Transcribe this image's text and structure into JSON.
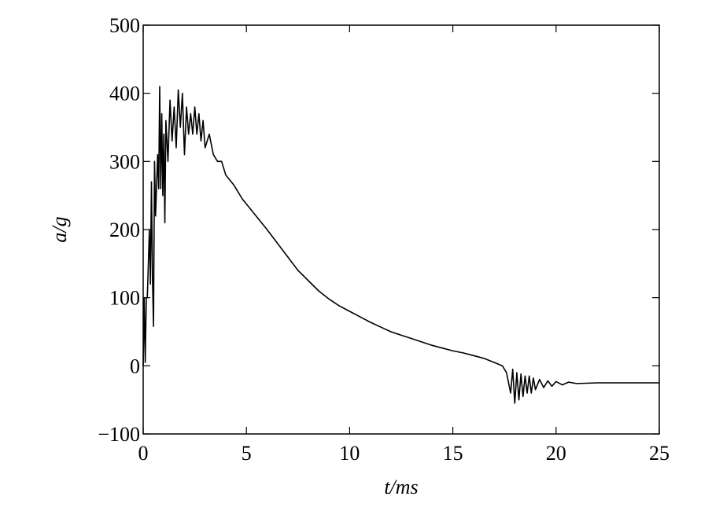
{
  "chart_data": {
    "type": "line",
    "xlabel": "t/ms",
    "ylabel": "a/g",
    "x": [
      0,
      0.05,
      0.1,
      0.15,
      0.2,
      0.3,
      0.35,
      0.4,
      0.45,
      0.5,
      0.55,
      0.6,
      0.7,
      0.75,
      0.8,
      0.85,
      0.9,
      0.95,
      1.0,
      1.05,
      1.1,
      1.2,
      1.3,
      1.4,
      1.5,
      1.6,
      1.7,
      1.8,
      1.9,
      2.0,
      2.1,
      2.2,
      2.3,
      2.4,
      2.5,
      2.6,
      2.7,
      2.8,
      2.9,
      3.0,
      3.2,
      3.4,
      3.6,
      3.8,
      4.0,
      4.4,
      4.8,
      5.2,
      5.6,
      6,
      6.5,
      7,
      7.5,
      8,
      8.5,
      9,
      9.5,
      10,
      10.5,
      11,
      11.5,
      12,
      12.5,
      13,
      13.5,
      14,
      14.5,
      15,
      15.5,
      16,
      16.5,
      17,
      17.4,
      17.6,
      17.8,
      17.9,
      18.0,
      18.1,
      18.2,
      18.3,
      18.4,
      18.5,
      18.6,
      18.7,
      18.8,
      18.9,
      19,
      19.2,
      19.4,
      19.6,
      19.8,
      20,
      20.3,
      20.6,
      21,
      22,
      23,
      25
    ],
    "values": [
      0,
      100,
      5,
      100,
      100,
      200,
      120,
      270,
      130,
      58,
      300,
      220,
      310,
      260,
      410,
      260,
      370,
      250,
      340,
      210,
      360,
      300,
      390,
      330,
      380,
      320,
      405,
      350,
      400,
      310,
      380,
      340,
      370,
      340,
      380,
      340,
      370,
      330,
      360,
      320,
      340,
      310,
      300,
      300,
      280,
      265,
      245,
      230,
      215,
      200,
      180,
      160,
      140,
      125,
      110,
      98,
      88,
      80,
      72,
      64,
      57,
      50,
      45,
      40,
      35,
      30,
      26,
      22,
      19,
      15,
      11,
      5,
      0,
      -10,
      -40,
      -5,
      -55,
      -10,
      -50,
      -12,
      -45,
      -15,
      -40,
      -15,
      -40,
      -18,
      -35,
      -20,
      -32,
      -22,
      -30,
      -23,
      -28,
      -24,
      -26,
      -25,
      -25,
      -25
    ],
    "color": "#000000",
    "xlim": [
      0,
      25
    ],
    "xticks": [
      0,
      5,
      10,
      15,
      20,
      25
    ],
    "ylim": [
      -100,
      500
    ],
    "yticks": [
      {
        "value": -100,
        "label": "−100"
      },
      0,
      100,
      200,
      300,
      400,
      500
    ],
    "grid": false
  }
}
